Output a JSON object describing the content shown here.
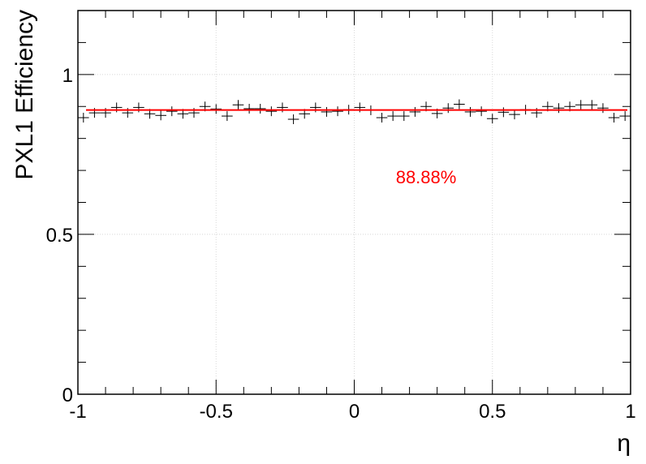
{
  "chart_data": {
    "type": "scatter",
    "xlabel": "η",
    "ylabel": "PXL1 Efficiency",
    "xlim": [
      -1,
      1
    ],
    "ylim": [
      0,
      1.2
    ],
    "x_ticks": [
      -1,
      -0.5,
      0,
      0.5,
      1
    ],
    "x_tick_labels": [
      "-1",
      "-0.5",
      "0",
      "0.5",
      "1"
    ],
    "y_ticks": [
      0,
      0.5,
      1
    ],
    "y_tick_labels": [
      "0",
      "0.5",
      "1"
    ],
    "grid": true,
    "bin_half_width": 0.02,
    "series": [
      {
        "marker": "cross-with-error-bars",
        "color": "#000000",
        "x": [
          -0.98,
          -0.94,
          -0.9,
          -0.86,
          -0.82,
          -0.78,
          -0.74,
          -0.7,
          -0.66,
          -0.62,
          -0.58,
          -0.54,
          -0.5,
          -0.46,
          -0.42,
          -0.38,
          -0.34,
          -0.3,
          -0.26,
          -0.22,
          -0.18,
          -0.14,
          -0.1,
          -0.06,
          -0.02,
          0.02,
          0.06,
          0.1,
          0.14,
          0.18,
          0.22,
          0.26,
          0.3,
          0.34,
          0.38,
          0.42,
          0.46,
          0.5,
          0.54,
          0.58,
          0.62,
          0.66,
          0.7,
          0.74,
          0.78,
          0.82,
          0.86,
          0.9,
          0.94,
          0.98
        ],
        "y": [
          0.865,
          0.88,
          0.88,
          0.897,
          0.88,
          0.897,
          0.877,
          0.872,
          0.885,
          0.877,
          0.88,
          0.9,
          0.892,
          0.87,
          0.905,
          0.893,
          0.893,
          0.885,
          0.897,
          0.86,
          0.877,
          0.897,
          0.883,
          0.885,
          0.89,
          0.897,
          0.888,
          0.865,
          0.87,
          0.87,
          0.883,
          0.9,
          0.878,
          0.895,
          0.907,
          0.883,
          0.885,
          0.862,
          0.882,
          0.875,
          0.89,
          0.88,
          0.9,
          0.895,
          0.9,
          0.905,
          0.905,
          0.895,
          0.865,
          0.87
        ]
      }
    ],
    "fit": {
      "type": "constant",
      "value": 0.8888,
      "color": "#ff0000"
    },
    "annotations": [
      {
        "text": "88.88%",
        "x": 0.26,
        "y": 0.68,
        "color": "#ff0000"
      }
    ]
  }
}
